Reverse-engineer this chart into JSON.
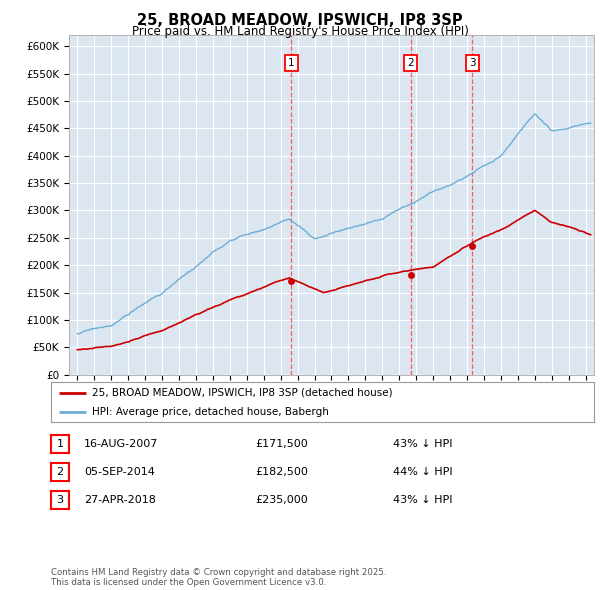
{
  "title": "25, BROAD MEADOW, IPSWICH, IP8 3SP",
  "subtitle": "Price paid vs. HM Land Registry's House Price Index (HPI)",
  "legend_line1": "25, BROAD MEADOW, IPSWICH, IP8 3SP (detached house)",
  "legend_line2": "HPI: Average price, detached house, Babergh",
  "transactions": [
    {
      "num": 1,
      "date": "16-AUG-2007",
      "price": 171500,
      "pct": "43%",
      "dir": "↓",
      "label": "HPI"
    },
    {
      "num": 2,
      "date": "05-SEP-2014",
      "price": 182500,
      "pct": "44%",
      "dir": "↓",
      "label": "HPI"
    },
    {
      "num": 3,
      "date": "27-APR-2018",
      "price": 235000,
      "pct": "43%",
      "dir": "↓",
      "label": "HPI"
    }
  ],
  "transaction_years": [
    2007.62,
    2014.68,
    2018.32
  ],
  "transaction_prices": [
    171500,
    182500,
    235000
  ],
  "footnote": "Contains HM Land Registry data © Crown copyright and database right 2025.\nThis data is licensed under the Open Government Licence v3.0.",
  "hpi_color": "#6baed6",
  "price_color": "#cc0000",
  "vline_color": "#ff4444",
  "bg_color": "#dce6f1",
  "grid_color": "#ffffff",
  "ylim": [
    0,
    620000
  ],
  "yticks": [
    0,
    50000,
    100000,
    150000,
    200000,
    250000,
    300000,
    350000,
    400000,
    450000,
    500000,
    550000,
    600000
  ],
  "xlim_start": 1994.5,
  "xlim_end": 2025.5
}
